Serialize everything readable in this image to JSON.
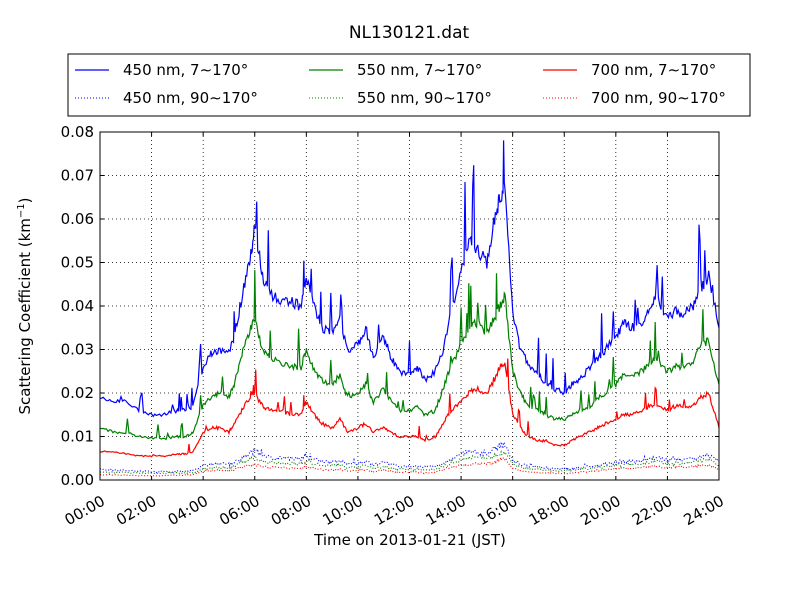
{
  "chart_data": {
    "type": "line",
    "title": "NL130121.dat",
    "xlabel": "Time on 2013-01-21 (JST)",
    "ylabel": "Scattering Coefficient (km",
    "ylabel_sup": "−1",
    "ylabel_close": ")",
    "x_unit": "hours",
    "xlim": [
      0,
      24
    ],
    "ylim": [
      0,
      0.08
    ],
    "xticks": [
      0,
      2,
      4,
      6,
      8,
      10,
      12,
      14,
      16,
      18,
      20,
      22,
      24
    ],
    "xtick_labels": [
      "00:00",
      "02:00",
      "04:00",
      "06:00",
      "08:00",
      "10:00",
      "12:00",
      "14:00",
      "16:00",
      "18:00",
      "20:00",
      "22:00",
      "24:00"
    ],
    "yticks": [
      0,
      0.01,
      0.02,
      0.03,
      0.04,
      0.05,
      0.06,
      0.07,
      0.08
    ],
    "ytick_labels": [
      "0.00",
      "0.01",
      "0.02",
      "0.03",
      "0.04",
      "0.05",
      "0.06",
      "0.07",
      "0.08"
    ],
    "grid": true,
    "legend_position": "top",
    "x": [
      0,
      0.5,
      1,
      1.5,
      2,
      2.5,
      3,
      3.3,
      3.6,
      4,
      4.3,
      4.6,
      5,
      5.2,
      5.5,
      5.8,
      6,
      6.3,
      6.6,
      7,
      7.4,
      7.8,
      8,
      8.3,
      8.6,
      9,
      9.3,
      9.6,
      10,
      10.3,
      10.6,
      11,
      11.3,
      11.6,
      12,
      12.3,
      12.6,
      13,
      13.3,
      13.6,
      14,
      14.3,
      14.6,
      15,
      15.3,
      15.5,
      15.7,
      16,
      16.3,
      16.6,
      17,
      17.3,
      17.6,
      18,
      18.3,
      18.6,
      19,
      19.3,
      19.6,
      20,
      20.3,
      20.6,
      21,
      21.3,
      21.6,
      22,
      22.3,
      22.6,
      23,
      23.3,
      23.6,
      24
    ],
    "series": [
      {
        "name": "450 nm, 7∼170°",
        "color": "#0000ff",
        "style": "solid",
        "values": [
          0.019,
          0.018,
          0.018,
          0.016,
          0.015,
          0.015,
          0.016,
          0.016,
          0.017,
          0.026,
          0.029,
          0.03,
          0.029,
          0.033,
          0.042,
          0.05,
          0.058,
          0.047,
          0.043,
          0.041,
          0.041,
          0.04,
          0.046,
          0.04,
          0.035,
          0.034,
          0.037,
          0.03,
          0.031,
          0.035,
          0.028,
          0.033,
          0.028,
          0.025,
          0.024,
          0.026,
          0.023,
          0.025,
          0.03,
          0.038,
          0.048,
          0.055,
          0.053,
          0.05,
          0.06,
          0.065,
          0.068,
          0.038,
          0.03,
          0.027,
          0.024,
          0.022,
          0.021,
          0.02,
          0.022,
          0.023,
          0.026,
          0.028,
          0.03,
          0.033,
          0.036,
          0.035,
          0.036,
          0.04,
          0.042,
          0.037,
          0.039,
          0.038,
          0.04,
          0.044,
          0.047,
          0.035
        ]
      },
      {
        "name": "550 nm, 7∼170°",
        "color": "#008000",
        "style": "solid",
        "values": [
          0.012,
          0.011,
          0.011,
          0.01,
          0.0095,
          0.0095,
          0.01,
          0.01,
          0.011,
          0.017,
          0.019,
          0.02,
          0.019,
          0.022,
          0.029,
          0.034,
          0.037,
          0.03,
          0.028,
          0.027,
          0.026,
          0.026,
          0.03,
          0.025,
          0.023,
          0.022,
          0.024,
          0.019,
          0.02,
          0.022,
          0.018,
          0.021,
          0.018,
          0.016,
          0.016,
          0.017,
          0.015,
          0.016,
          0.021,
          0.026,
          0.031,
          0.035,
          0.036,
          0.034,
          0.037,
          0.04,
          0.042,
          0.025,
          0.02,
          0.017,
          0.016,
          0.015,
          0.014,
          0.014,
          0.015,
          0.016,
          0.017,
          0.019,
          0.02,
          0.022,
          0.024,
          0.024,
          0.025,
          0.027,
          0.028,
          0.025,
          0.026,
          0.026,
          0.027,
          0.031,
          0.032,
          0.022
        ]
      },
      {
        "name": "700 nm, 7∼170°",
        "color": "#ff0000",
        "style": "solid",
        "values": [
          0.0065,
          0.0065,
          0.006,
          0.0055,
          0.0055,
          0.0055,
          0.006,
          0.006,
          0.0065,
          0.011,
          0.012,
          0.012,
          0.011,
          0.013,
          0.016,
          0.019,
          0.02,
          0.017,
          0.016,
          0.016,
          0.015,
          0.015,
          0.018,
          0.015,
          0.013,
          0.012,
          0.014,
          0.011,
          0.012,
          0.013,
          0.011,
          0.012,
          0.011,
          0.01,
          0.01,
          0.01,
          0.009,
          0.01,
          0.013,
          0.016,
          0.018,
          0.02,
          0.021,
          0.02,
          0.023,
          0.026,
          0.027,
          0.015,
          0.012,
          0.01,
          0.009,
          0.009,
          0.008,
          0.008,
          0.009,
          0.01,
          0.011,
          0.012,
          0.013,
          0.014,
          0.015,
          0.015,
          0.016,
          0.017,
          0.017,
          0.016,
          0.017,
          0.017,
          0.017,
          0.019,
          0.02,
          0.012
        ]
      },
      {
        "name": "450 nm, 90∼170°",
        "color": "#0000ff",
        "style": "dotted",
        "values": [
          0.0025,
          0.0023,
          0.0022,
          0.002,
          0.0019,
          0.0019,
          0.002,
          0.002,
          0.0021,
          0.0032,
          0.0036,
          0.0037,
          0.0036,
          0.004,
          0.005,
          0.006,
          0.0068,
          0.0057,
          0.0052,
          0.005,
          0.005,
          0.0049,
          0.0055,
          0.0048,
          0.0043,
          0.0042,
          0.0045,
          0.0037,
          0.0038,
          0.0043,
          0.0035,
          0.004,
          0.0035,
          0.0031,
          0.003,
          0.0032,
          0.0029,
          0.0031,
          0.0037,
          0.0046,
          0.0058,
          0.0066,
          0.0064,
          0.006,
          0.0072,
          0.0078,
          0.0082,
          0.0046,
          0.0037,
          0.0033,
          0.003,
          0.0027,
          0.0026,
          0.0025,
          0.0027,
          0.0028,
          0.0032,
          0.0034,
          0.0037,
          0.004,
          0.0044,
          0.0043,
          0.0044,
          0.0049,
          0.0051,
          0.0045,
          0.0048,
          0.0046,
          0.0049,
          0.0053,
          0.0057,
          0.0043
        ]
      },
      {
        "name": "550 nm, 90∼170°",
        "color": "#008000",
        "style": "dotted",
        "values": [
          0.0018,
          0.0017,
          0.0017,
          0.0016,
          0.0015,
          0.0015,
          0.0016,
          0.0016,
          0.0017,
          0.0025,
          0.0028,
          0.0029,
          0.0028,
          0.0032,
          0.0041,
          0.0047,
          0.0052,
          0.0043,
          0.004,
          0.0039,
          0.0038,
          0.0038,
          0.0043,
          0.0037,
          0.0034,
          0.0033,
          0.0035,
          0.0029,
          0.003,
          0.0033,
          0.0027,
          0.0031,
          0.0027,
          0.0024,
          0.0024,
          0.0025,
          0.0023,
          0.0024,
          0.0031,
          0.0038,
          0.0045,
          0.0051,
          0.0052,
          0.005,
          0.0055,
          0.0059,
          0.0062,
          0.0037,
          0.003,
          0.0026,
          0.0024,
          0.0023,
          0.0021,
          0.0021,
          0.0023,
          0.0024,
          0.0026,
          0.0028,
          0.003,
          0.0033,
          0.0036,
          0.0036,
          0.0037,
          0.004,
          0.0042,
          0.0037,
          0.0039,
          0.0039,
          0.004,
          0.0045,
          0.0047,
          0.0033
        ]
      },
      {
        "name": "700 nm, 90∼170°",
        "color": "#ff0000",
        "style": "dotted",
        "values": [
          0.0012,
          0.0012,
          0.0011,
          0.001,
          0.001,
          0.001,
          0.0011,
          0.0011,
          0.0012,
          0.002,
          0.0022,
          0.0022,
          0.002,
          0.0024,
          0.0029,
          0.0034,
          0.0036,
          0.0031,
          0.0029,
          0.0029,
          0.0027,
          0.0027,
          0.0032,
          0.0027,
          0.0024,
          0.0022,
          0.0025,
          0.002,
          0.0022,
          0.0024,
          0.002,
          0.0022,
          0.002,
          0.0018,
          0.0018,
          0.0018,
          0.0016,
          0.0018,
          0.0024,
          0.0029,
          0.0032,
          0.0036,
          0.0038,
          0.0036,
          0.0041,
          0.0047,
          0.0049,
          0.0027,
          0.0022,
          0.0018,
          0.0016,
          0.0016,
          0.0015,
          0.0015,
          0.0016,
          0.0018,
          0.002,
          0.0022,
          0.0024,
          0.0025,
          0.0027,
          0.0027,
          0.0029,
          0.0031,
          0.0031,
          0.0029,
          0.0031,
          0.0031,
          0.0031,
          0.0034,
          0.0036,
          0.0022
        ]
      }
    ],
    "legend_order": [
      0,
      1,
      2,
      3,
      4,
      5
    ]
  }
}
